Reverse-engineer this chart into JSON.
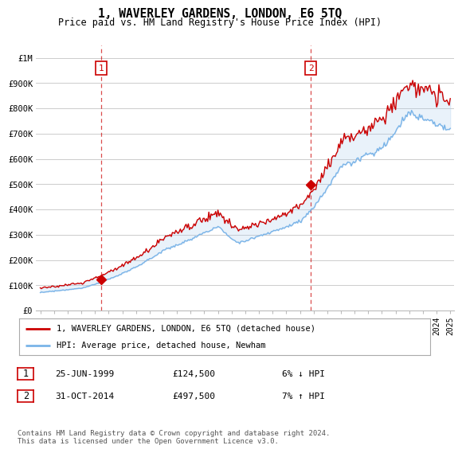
{
  "title": "1, WAVERLEY GARDENS, LONDON, E6 5TQ",
  "subtitle": "Price paid vs. HM Land Registry's House Price Index (HPI)",
  "legend_line1": "1, WAVERLEY GARDENS, LONDON, E6 5TQ (detached house)",
  "legend_line2": "HPI: Average price, detached house, Newham",
  "purchase1_date": "25-JUN-1999",
  "purchase1_price": 124500,
  "purchase1_label": "6% ↓ HPI",
  "purchase2_date": "31-OCT-2014",
  "purchase2_price": 497500,
  "purchase2_label": "7% ↑ HPI",
  "footer": "Contains HM Land Registry data © Crown copyright and database right 2024.\nThis data is licensed under the Open Government Licence v3.0.",
  "hpi_color": "#7ab4e8",
  "price_color": "#cc0000",
  "fill_color": "#ddeeff",
  "vline_color": "#cc0000",
  "background_color": "#ffffff",
  "grid_color": "#cccccc",
  "ylim": [
    0,
    1050000
  ],
  "yticks": [
    0,
    100000,
    200000,
    300000,
    400000,
    500000,
    600000,
    700000,
    800000,
    900000,
    1000000
  ],
  "ytick_labels": [
    "£0",
    "£100K",
    "£200K",
    "£300K",
    "£400K",
    "£500K",
    "£600K",
    "£700K",
    "£800K",
    "£900K",
    "£1M"
  ]
}
